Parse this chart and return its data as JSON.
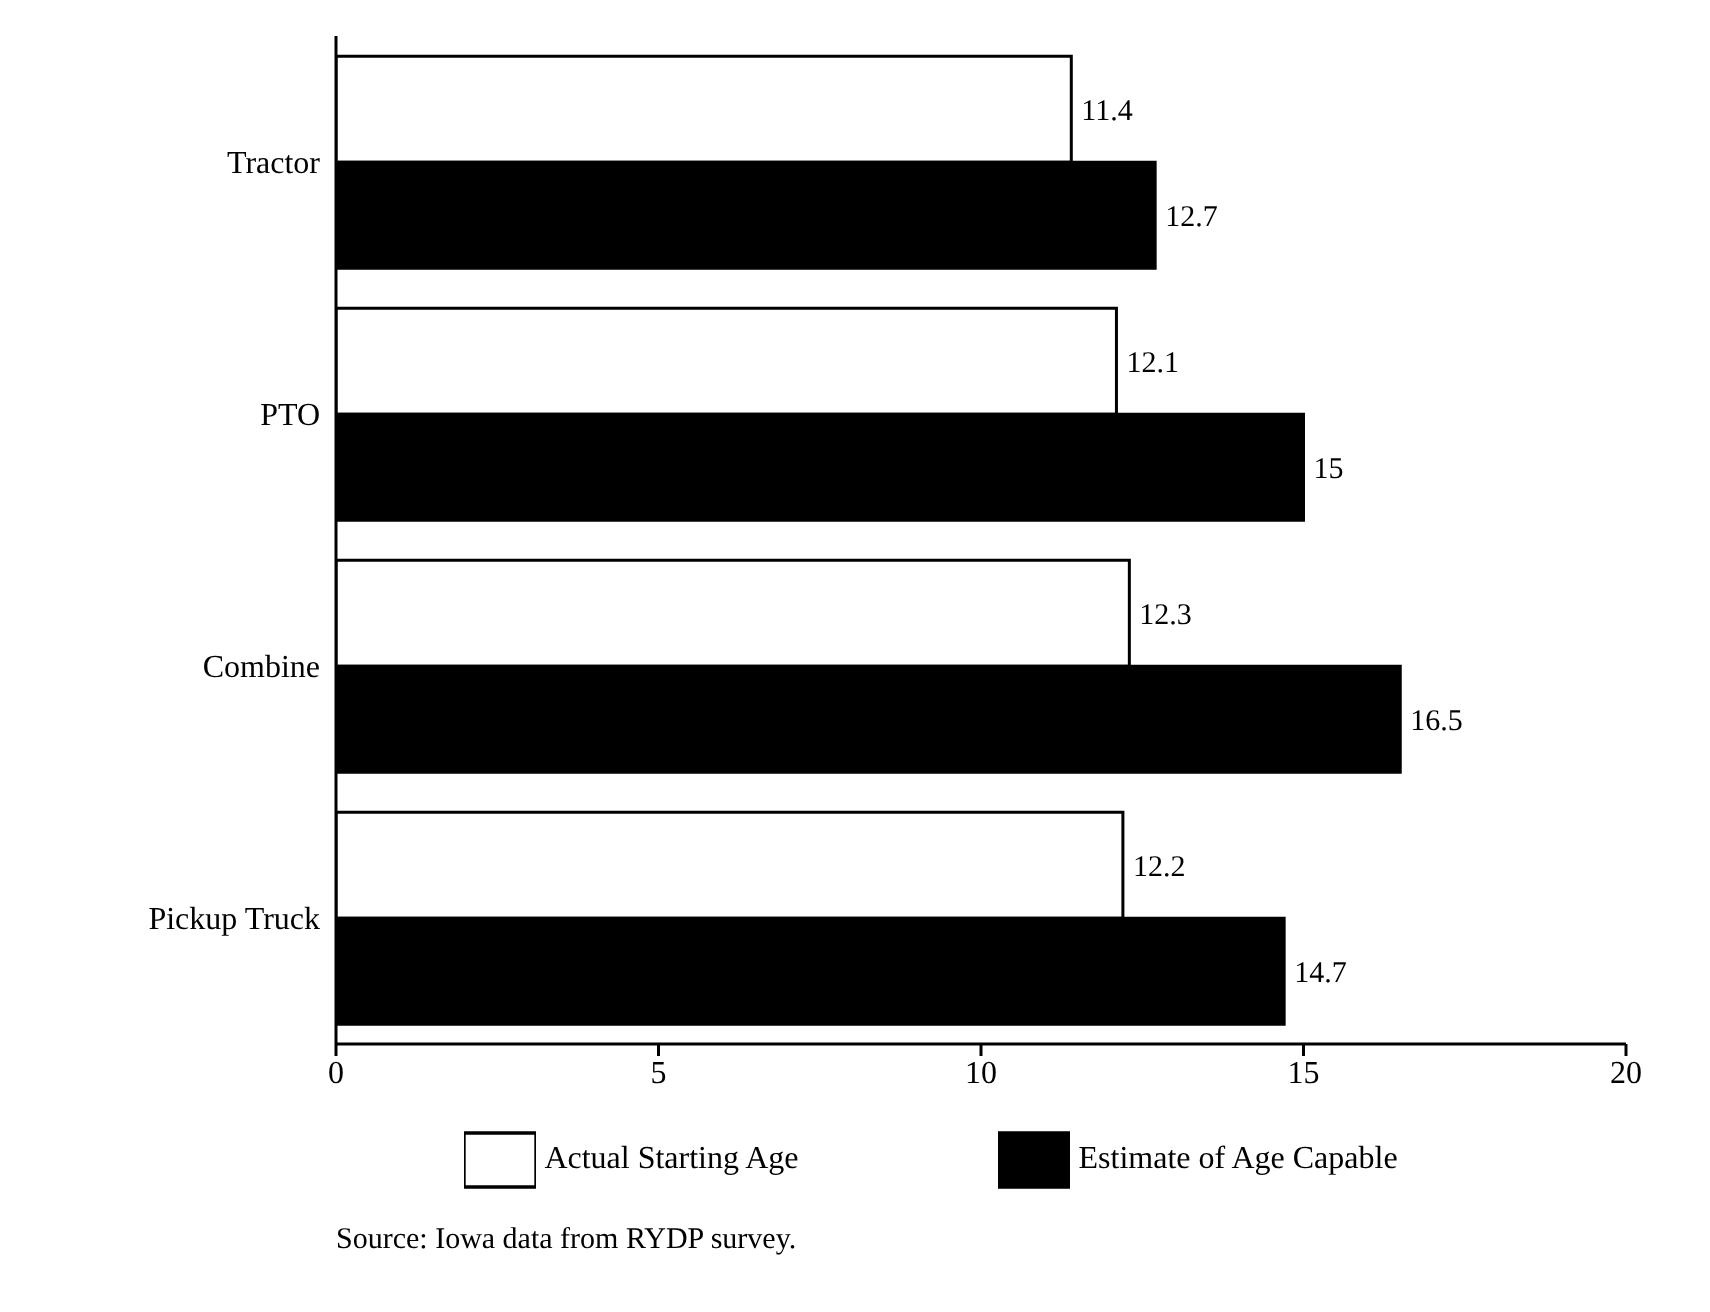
{
  "chart_data": {
    "type": "bar",
    "orientation": "horizontal",
    "categories": [
      "Tractor",
      "PTO",
      "Combine",
      "Pickup Truck"
    ],
    "series": [
      {
        "name": "Actual Starting Age",
        "color": "#ffffff",
        "values": [
          11.4,
          12.1,
          12.3,
          12.2
        ]
      },
      {
        "name": "Estimate of Age Capable",
        "color": "#000000",
        "values": [
          12.7,
          15,
          16.5,
          14.7
        ]
      }
    ],
    "xlim": [
      0,
      20
    ],
    "xticks": [
      0,
      5,
      10,
      15,
      20
    ],
    "data_labels": true,
    "grid": false,
    "legend": "bottom",
    "annotations": [
      "Source: Iowa data from RYDP survey."
    ]
  }
}
